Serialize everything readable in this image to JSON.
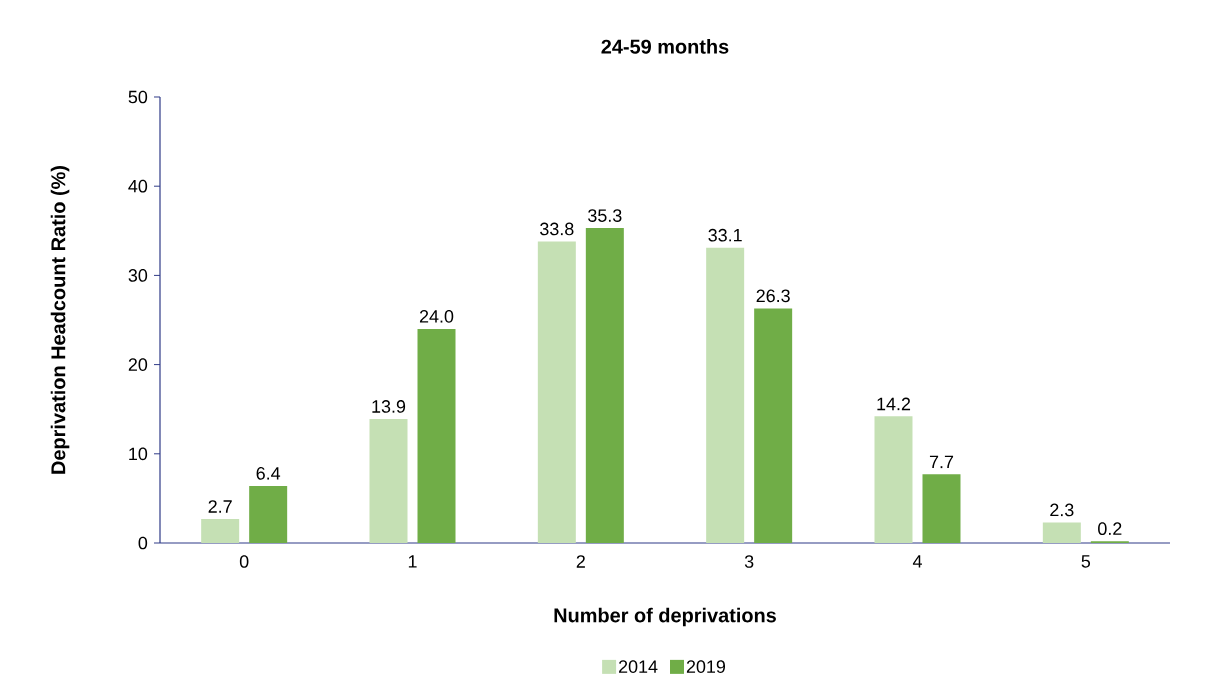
{
  "chart_data": {
    "type": "bar",
    "title": "24-59 months",
    "xlabel": "Number of deprivations",
    "ylabel": "Deprivation Headcount Ratio (%)",
    "categories": [
      "0",
      "1",
      "2",
      "3",
      "4",
      "5"
    ],
    "series": [
      {
        "name": "2014",
        "color": "#c5e0b4",
        "values": [
          2.7,
          13.9,
          33.8,
          33.1,
          14.2,
          2.3
        ],
        "value_labels": [
          "2.7",
          "13.9",
          "33.8",
          "33.1",
          "14.2",
          "2.3"
        ]
      },
      {
        "name": "2019",
        "color": "#70ad47",
        "values": [
          6.4,
          24.0,
          35.3,
          26.3,
          7.7,
          0.2
        ],
        "value_labels": [
          "6.4",
          "24.0",
          "35.3",
          "26.3",
          "7.7",
          "0.2"
        ]
      }
    ],
    "ylim": [
      0,
      50
    ],
    "yticks": [
      0,
      10,
      20,
      30,
      40,
      50
    ],
    "legend": "bottom"
  }
}
